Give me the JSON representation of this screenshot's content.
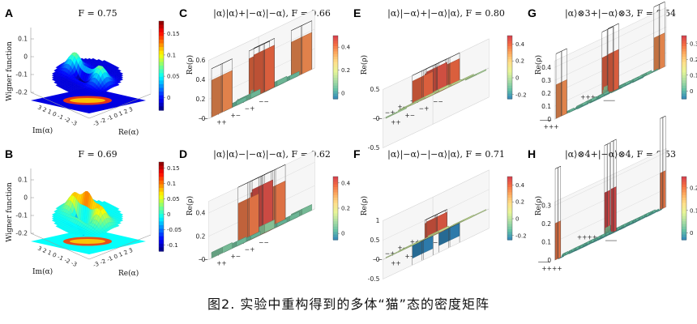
{
  "figure_caption": "图2. 实验中重构得到的多体“猫”态的密度矩阵",
  "colors": {
    "jet": [
      "#00007f",
      "#0000ff",
      "#0080ff",
      "#00ffff",
      "#80ff80",
      "#ffff00",
      "#ff8000",
      "#ff0000",
      "#7f0000"
    ],
    "spectral": [
      "#3288bd",
      "#66c2a5",
      "#abdda4",
      "#e6f598",
      "#fee08b",
      "#fdae61",
      "#f46d43",
      "#d53e4f"
    ],
    "pane": "#f6f6f6",
    "grid": "#d4d4d4"
  },
  "chart_data": [
    {
      "panel": "A",
      "type": "wigner-surface",
      "title": "F = 0.75",
      "zlabel": "Wigner function",
      "xlabel": "Re(α)",
      "ylabel": "Im(α)",
      "ztick_labels": [
        "0.1",
        "0",
        "-0.1",
        "-0.2"
      ],
      "axis_tick_labels": [
        "3",
        "2",
        "1",
        "0",
        "-1",
        "-2",
        "-3"
      ],
      "ytick_label_text": "3 2 1 0 -1 -2 -3",
      "xtick_label_text": "-3 -2 -1 0 1 2 3",
      "colorbar_ticks": [
        "0.15",
        "0.1",
        "0.05",
        "0"
      ],
      "colorbar_range": [
        -0.03,
        0.18
      ],
      "lobe_separation": 1.5,
      "fringe_amplitude": 0.04
    },
    {
      "panel": "B",
      "type": "wigner-surface",
      "title": "F = 0.69",
      "zlabel": "Wigner function",
      "xlabel": "Re(α)",
      "ylabel": "Im(α)",
      "ztick_labels": [
        "0.1",
        "0",
        "-0.1",
        "-0.2"
      ],
      "ytick_label_text": "3 2 1 0 -1 -2 -3",
      "xtick_label_text": "-3 -2 -1 0 1 2 3",
      "colorbar_ticks": [
        "0.15",
        "0.1",
        "0.05",
        "0",
        "-0.05",
        "-0.1"
      ],
      "colorbar_range": [
        -0.12,
        0.17
      ],
      "lobe_separation": 1.5,
      "fringe_amplitude": 0.12
    },
    {
      "panel": "C",
      "type": "density-matrix-bar3d",
      "title": "|α⟩|α⟩+|−α⟩|−α⟩, F = 0.66",
      "zlabel": "Re(ρ)",
      "ztick_labels": [
        "0.6",
        "0.4",
        "0.2",
        "0"
      ],
      "zlim": [
        0,
        0.6
      ],
      "colorbar_ticks": [
        "0.4",
        "0.2",
        "0"
      ],
      "colorbar_range": [
        -0.05,
        0.5
      ],
      "basis": [
        "++",
        "+−",
        "−+",
        "−−"
      ],
      "values": [
        [
          0.42,
          0.05,
          0.04,
          0.38
        ],
        [
          0.05,
          0.08,
          0.03,
          0.04
        ],
        [
          0.04,
          0.03,
          0.07,
          0.05
        ],
        [
          0.38,
          0.04,
          0.05,
          0.43
        ]
      ],
      "ideal": [
        [
          0.5,
          0,
          0,
          0.5
        ],
        [
          0,
          0,
          0,
          0
        ],
        [
          0,
          0,
          0,
          0
        ],
        [
          0.5,
          0,
          0,
          0.5
        ]
      ]
    },
    {
      "panel": "D",
      "type": "density-matrix-bar3d",
      "title": "|α⟩|α⟩−|−α⟩|−α⟩, F = 0.62",
      "zlabel": "Re(ρ)",
      "ztick_labels": [
        "0.4",
        "0.2",
        "0"
      ],
      "zlim": [
        0,
        0.5
      ],
      "colorbar_ticks": [
        "0.4",
        "0.2",
        "0"
      ],
      "colorbar_range": [
        -0.05,
        0.45
      ],
      "basis": [
        "++",
        "+−",
        "−+",
        "−−"
      ],
      "values": [
        [
          0.06,
          0.03,
          0.04,
          0.05
        ],
        [
          0.03,
          0.4,
          0.36,
          0.04
        ],
        [
          0.04,
          0.36,
          0.42,
          0.03
        ],
        [
          0.05,
          0.04,
          0.03,
          0.07
        ]
      ],
      "ideal": [
        [
          0,
          0,
          0,
          0
        ],
        [
          0,
          0.5,
          0.5,
          0
        ],
        [
          0,
          0.5,
          0.5,
          0
        ],
        [
          0,
          0,
          0,
          0
        ]
      ]
    },
    {
      "panel": "E",
      "type": "density-matrix-bar3d",
      "title": "|α⟩|−α⟩+|−α⟩|α⟩, F = 0.80",
      "zlabel": "Re(ρ)",
      "ztick_labels": [
        "0.5",
        "0",
        "-0.5"
      ],
      "zlim": [
        -0.5,
        0.5
      ],
      "colorbar_ticks": [
        "0.4",
        "0.2",
        "0",
        "-0.2"
      ],
      "colorbar_range": [
        -0.25,
        0.5
      ],
      "basis": [
        "++",
        "+−",
        "−+",
        "−−"
      ],
      "values": [
        [
          0.02,
          0.03,
          0.02,
          -0.02
        ],
        [
          0.03,
          0.42,
          0.4,
          0.02
        ],
        [
          0.02,
          0.4,
          0.44,
          0.03
        ],
        [
          -0.02,
          0.02,
          0.03,
          0.04
        ]
      ],
      "ideal": [
        [
          0,
          0,
          0,
          0
        ],
        [
          0,
          0.5,
          0.5,
          0
        ],
        [
          0,
          0.5,
          0.5,
          0
        ],
        [
          0,
          0,
          0,
          0
        ]
      ]
    },
    {
      "panel": "F",
      "type": "density-matrix-bar3d",
      "title": "|α⟩|−α⟩−|−α⟩|α⟩, F = 0.71",
      "zlabel": "Re(ρ)",
      "ztick_labels": [
        "1",
        "0.5",
        "0",
        "-0.5"
      ],
      "zlim": [
        -0.5,
        1
      ],
      "colorbar_ticks": [
        "0.4",
        "0.2",
        "0",
        "-0.2"
      ],
      "colorbar_range": [
        -0.25,
        0.5
      ],
      "basis": [
        "++",
        "+−",
        "−+",
        "−−"
      ],
      "values": [
        [
          0.03,
          0.02,
          0.03,
          0.02
        ],
        [
          0.02,
          0.41,
          -0.33,
          0.03
        ],
        [
          0.03,
          -0.33,
          0.43,
          0.02
        ],
        [
          0.02,
          0.03,
          0.02,
          0.05
        ]
      ],
      "ideal": [
        [
          0,
          0,
          0,
          0
        ],
        [
          0,
          0.5,
          -0.5,
          0
        ],
        [
          0,
          -0.5,
          0.5,
          0
        ],
        [
          0,
          0,
          0,
          0
        ]
      ]
    },
    {
      "panel": "G",
      "type": "density-matrix-bar3d",
      "title": "|α⟩⊗3+|−α⟩⊗3, F = 0.54",
      "zlabel": "Re(ρ)",
      "ztick_labels": [
        "0.4",
        "0.3",
        "0.2",
        "0.1",
        "0"
      ],
      "zlim": [
        0,
        0.45
      ],
      "colorbar_ticks": [
        "0.3",
        "0.2",
        "0.1",
        "0"
      ],
      "colorbar_range": [
        -0.05,
        0.35
      ],
      "qubits": 3,
      "corner_labels": [
        "+++",
        "−−−"
      ],
      "diag_peak": 0.3,
      "coherence_peak": 0.26,
      "background": 0.03
    },
    {
      "panel": "H",
      "type": "density-matrix-bar3d",
      "title": "|α⟩⊗4+|−α⟩⊗4, F = 0.53",
      "zlabel": "Re(ρ)",
      "ztick_labels": [
        "0.3",
        "0.2",
        "0.1",
        "0"
      ],
      "zlim": [
        0,
        0.32
      ],
      "colorbar_ticks": [
        "0.2",
        "0.1",
        "0"
      ],
      "colorbar_range": [
        -0.03,
        0.25
      ],
      "qubits": 4,
      "corner_labels": [
        "++++",
        "−−−−"
      ],
      "diag_peak": 0.24,
      "coherence_peak": 0.2,
      "background": 0.02
    }
  ]
}
